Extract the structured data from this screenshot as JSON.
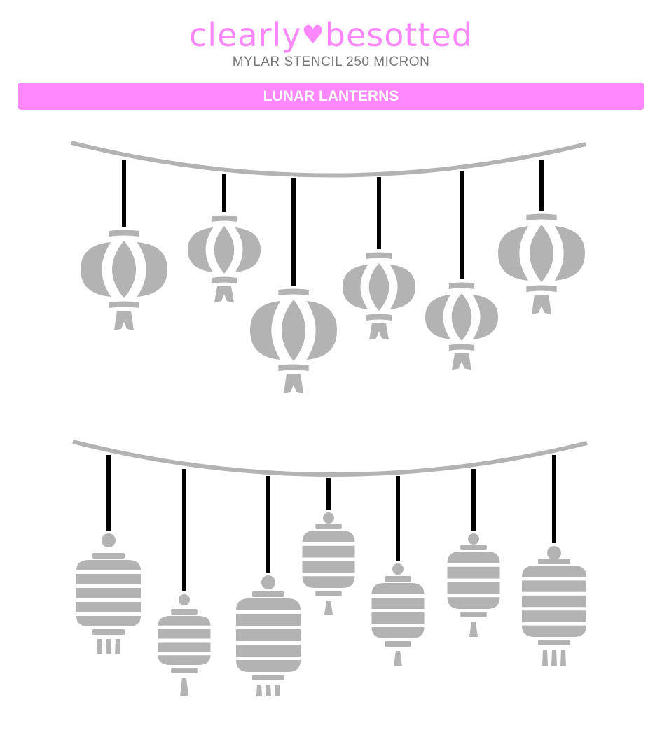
{
  "brand": {
    "name_left": "Clearly",
    "name_right": "Besotted",
    "heart": "♥",
    "color": "#ff88ff"
  },
  "subtitle": "MYLAR STENCIL 250 MICRON",
  "product_title": "LUNAR LANTERNS",
  "stencil_color": "#b3b3b3",
  "artwork": {
    "top_row": "round lanterns",
    "bottom_row": "striped lanterns",
    "top_count": 6,
    "bottom_count": 7
  }
}
